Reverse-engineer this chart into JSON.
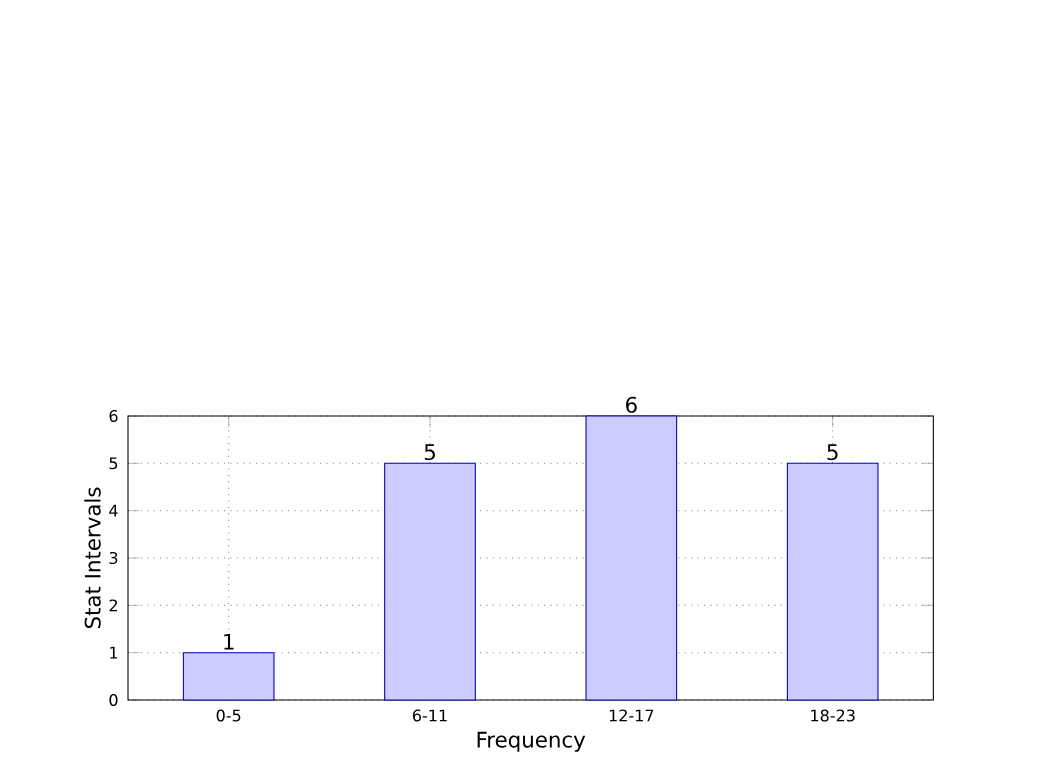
{
  "chart_data": {
    "type": "bar",
    "xlabel": "Frequency",
    "ylabel": "Stat Intervals",
    "categories": [
      "0-5",
      "6-11",
      "12-17",
      "18-23"
    ],
    "values": [
      1,
      5,
      6,
      5
    ],
    "color": "#ccccff",
    "ylim": [
      0,
      6
    ],
    "yticks": [
      0,
      1,
      2,
      3,
      4,
      5,
      6
    ],
    "grid": true,
    "data_labels": true
  }
}
